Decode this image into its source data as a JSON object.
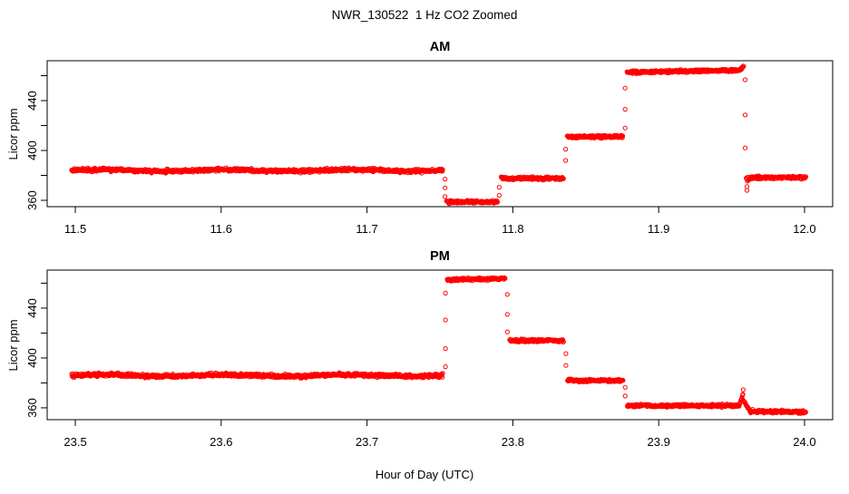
{
  "figure": {
    "title": "NWR_130522  1 Hz CO2 Zoomed",
    "xlabel": "Hour of Day (UTC)",
    "background": "#FFFFFF",
    "axis_color": "#000000",
    "point_color": "#FF0000"
  },
  "chart_data": [
    {
      "type": "scatter",
      "panel": "AM",
      "title": "AM",
      "ylabel": "Licor ppm",
      "marker": "open-circle",
      "sample_rate_hz": 1,
      "color": "#FF0000",
      "grid": false,
      "xlim": [
        11.4807,
        12.0193
      ],
      "ylim": [
        354.9,
        472.0
      ],
      "xticks": [
        11.5,
        11.6,
        11.7,
        11.8,
        11.9,
        12.0
      ],
      "xtick_labels": [
        "11.5",
        "11.6",
        "11.7",
        "11.8",
        "11.9",
        "12.0"
      ],
      "yticks": [
        360,
        380,
        400,
        420,
        440,
        460
      ],
      "ytick_labels": [
        "360",
        "",
        "400",
        "",
        "440",
        ""
      ],
      "segments": [
        {
          "t0": 11.4975,
          "t1": 11.752,
          "v0": 384.0,
          "noise": 1.4,
          "wander": 0.6
        },
        {
          "t0": 11.7545,
          "t1": 11.7895,
          "v0": 358.8,
          "noise": 1.2
        },
        {
          "t0": 11.792,
          "t1": 11.835,
          "v0": 377.5,
          "noise": 1.2
        },
        {
          "t0": 11.8373,
          "t1": 11.8755,
          "v0": 411.0,
          "noise": 1.2
        },
        {
          "t0": 11.8783,
          "t1": 11.9555,
          "v0": 462.8,
          "v1": 464.3,
          "noise": 1.2
        },
        {
          "t0": 11.9555,
          "t1": 11.9585,
          "v0": 464.5,
          "v1": 468.0,
          "noise": 0.8
        },
        {
          "t0": 11.96,
          "t1": 11.964,
          "v0": 376.0,
          "v1": 378.0,
          "noise": 2.0
        },
        {
          "t0": 11.964,
          "t1": 12.001,
          "v0": 378.2,
          "noise": 1.3
        }
      ],
      "transitions": [
        {
          "t": 11.7535,
          "values": [
            377.0,
            370.0,
            363.0
          ]
        },
        {
          "t": 11.7907,
          "values": [
            364.0,
            370.5
          ]
        },
        {
          "t": 11.8362,
          "values": [
            392.0,
            401.0
          ]
        },
        {
          "t": 11.877,
          "values": [
            418.0,
            433.0,
            450.0
          ]
        },
        {
          "t": 11.9593,
          "values": [
            456.7,
            428.5,
            402.0
          ]
        },
        {
          "t": 11.9605,
          "values": [
            371.0,
            368.0
          ]
        }
      ]
    },
    {
      "type": "scatter",
      "panel": "PM",
      "title": "PM",
      "ylabel": "Licor ppm",
      "marker": "open-circle",
      "sample_rate_hz": 1,
      "color": "#FF0000",
      "grid": false,
      "xlim": [
        23.4807,
        24.0193
      ],
      "ylim": [
        350.5,
        470.5
      ],
      "xticks": [
        23.5,
        23.6,
        23.7,
        23.8,
        23.9,
        24.0
      ],
      "xtick_labels": [
        "23.5",
        "23.6",
        "23.7",
        "23.8",
        "23.9",
        "24.0"
      ],
      "yticks": [
        360,
        380,
        400,
        420,
        440,
        460
      ],
      "ytick_labels": [
        "360",
        "",
        "400",
        "",
        "440",
        ""
      ],
      "segments": [
        {
          "t0": 23.4975,
          "t1": 23.752,
          "v0": 386.0,
          "noise": 1.4,
          "wander": 0.6
        },
        {
          "t0": 23.755,
          "t1": 23.795,
          "v0": 462.7,
          "v1": 463.8,
          "noise": 1.2
        },
        {
          "t0": 23.7978,
          "t1": 23.835,
          "v0": 414.0,
          "noise": 1.2
        },
        {
          "t0": 23.8375,
          "t1": 23.8758,
          "v0": 382.0,
          "noise": 1.2
        },
        {
          "t0": 23.8785,
          "t1": 23.9552,
          "v0": 361.8,
          "noise": 1.2
        },
        {
          "t0": 23.9552,
          "t1": 23.9578,
          "v0": 362.0,
          "v1": 371.0,
          "noise": 0.7
        },
        {
          "t0": 23.958,
          "t1": 23.9625,
          "v0": 366.0,
          "v1": 357.5,
          "noise": 0.7
        },
        {
          "t0": 23.9625,
          "t1": 24.001,
          "v0": 357.2,
          "v1": 356.6,
          "noise": 1.2
        }
      ],
      "transitions": [
        {
          "t": 23.7538,
          "values": [
            393.0,
            407.5,
            430.5,
            452.0
          ]
        },
        {
          "t": 23.7962,
          "values": [
            451.0,
            435.0,
            421.0
          ]
        },
        {
          "t": 23.8364,
          "values": [
            403.5,
            394.0
          ]
        },
        {
          "t": 23.877,
          "values": [
            376.5,
            369.5
          ]
        },
        {
          "t": 23.958,
          "values": [
            374.5
          ]
        }
      ]
    }
  ]
}
